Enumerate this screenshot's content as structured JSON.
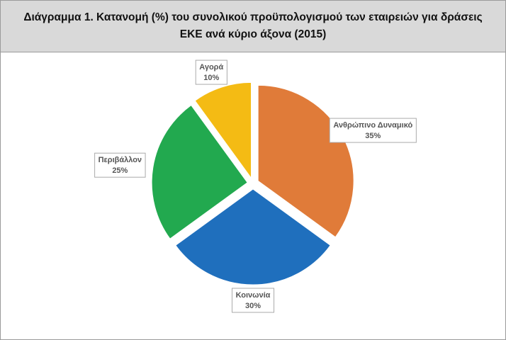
{
  "chart_data": {
    "type": "pie",
    "title": "Διάγραμμα 1. Κατανομή (%) του συνολικού προϋπολογισμού των εταιρειών για δράσεις ΕΚΕ ανά κύριο άξονα (2015)",
    "categories": [
      "Ανθρώπινο Δυναμικό",
      "Κοινωνία",
      "Περιβάλλον",
      "Αγορά"
    ],
    "values": [
      35,
      30,
      25,
      10
    ],
    "value_labels": [
      "35%",
      "30%",
      "25%",
      "10%"
    ],
    "colors": [
      "#e07b39",
      "#1f6fbd",
      "#22a94f",
      "#f4bb14"
    ]
  }
}
